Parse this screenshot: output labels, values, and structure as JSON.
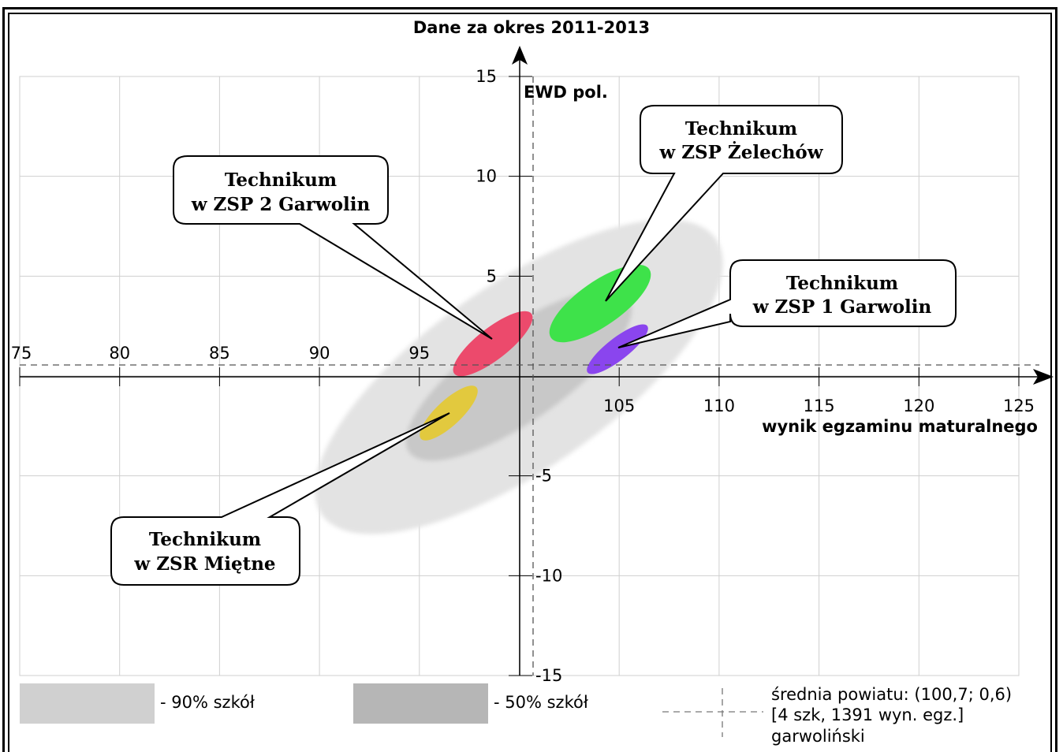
{
  "chart_data": {
    "type": "scatter",
    "title": "Dane za okres 2011-2013",
    "xlabel": "wynik egzaminu maturalnego",
    "ylabel": "EWD pol.",
    "xlim": [
      75,
      125
    ],
    "ylim": [
      -15,
      15
    ],
    "x_ticks": [
      "75",
      "80",
      "85",
      "90",
      "95",
      "105",
      "110",
      "115",
      "120",
      "125"
    ],
    "y_ticks": [
      "15",
      "10",
      "5",
      "-5",
      "-10",
      "-15"
    ],
    "grid": true,
    "reference_point": {
      "x": 100.7,
      "y": 0.6
    },
    "regions": [
      {
        "name": "90% szkół",
        "cx": 100.7,
        "cy": 0.2,
        "color": "#e2e2e2"
      },
      {
        "name": "50% szkół",
        "cx": 100.7,
        "cy": 0.3,
        "color": "#c6c6c6"
      }
    ],
    "series": [
      {
        "name": "Technikum w ZSP 2 Garwolin",
        "x": 98.6,
        "y": 1.7,
        "color": "#ec4a6c"
      },
      {
        "name": "Technikum w ZSP Żelechów",
        "x": 104.5,
        "y": 3.6,
        "color": "#3ee24a"
      },
      {
        "name": "Technikum w ZSP 1 Garwolin",
        "x": 105.0,
        "y": 1.2,
        "color": "#8a45ee"
      },
      {
        "name": "Technikum w ZSR Miętne",
        "x": 96.4,
        "y": -1.8,
        "color": "#e2c93e"
      }
    ]
  },
  "callouts": [
    {
      "line1": "Technikum",
      "line2": "w ZSP 2 Garwolin"
    },
    {
      "line1": "Technikum",
      "line2": "w ZSP Żelechów"
    },
    {
      "line1": "Technikum",
      "line2": "w ZSP 1 Garwolin"
    },
    {
      "line1": "Technikum",
      "line2": "w ZSR Miętne"
    }
  ],
  "legend": {
    "item90": "- 90% szkół",
    "item50": "- 50% szkół",
    "avg_line1": "średnia powiatu: (100,7; 0,6)",
    "avg_line2": "[4 szk, 1391 wyn. egz.]",
    "avg_line3": "garwoliński"
  }
}
